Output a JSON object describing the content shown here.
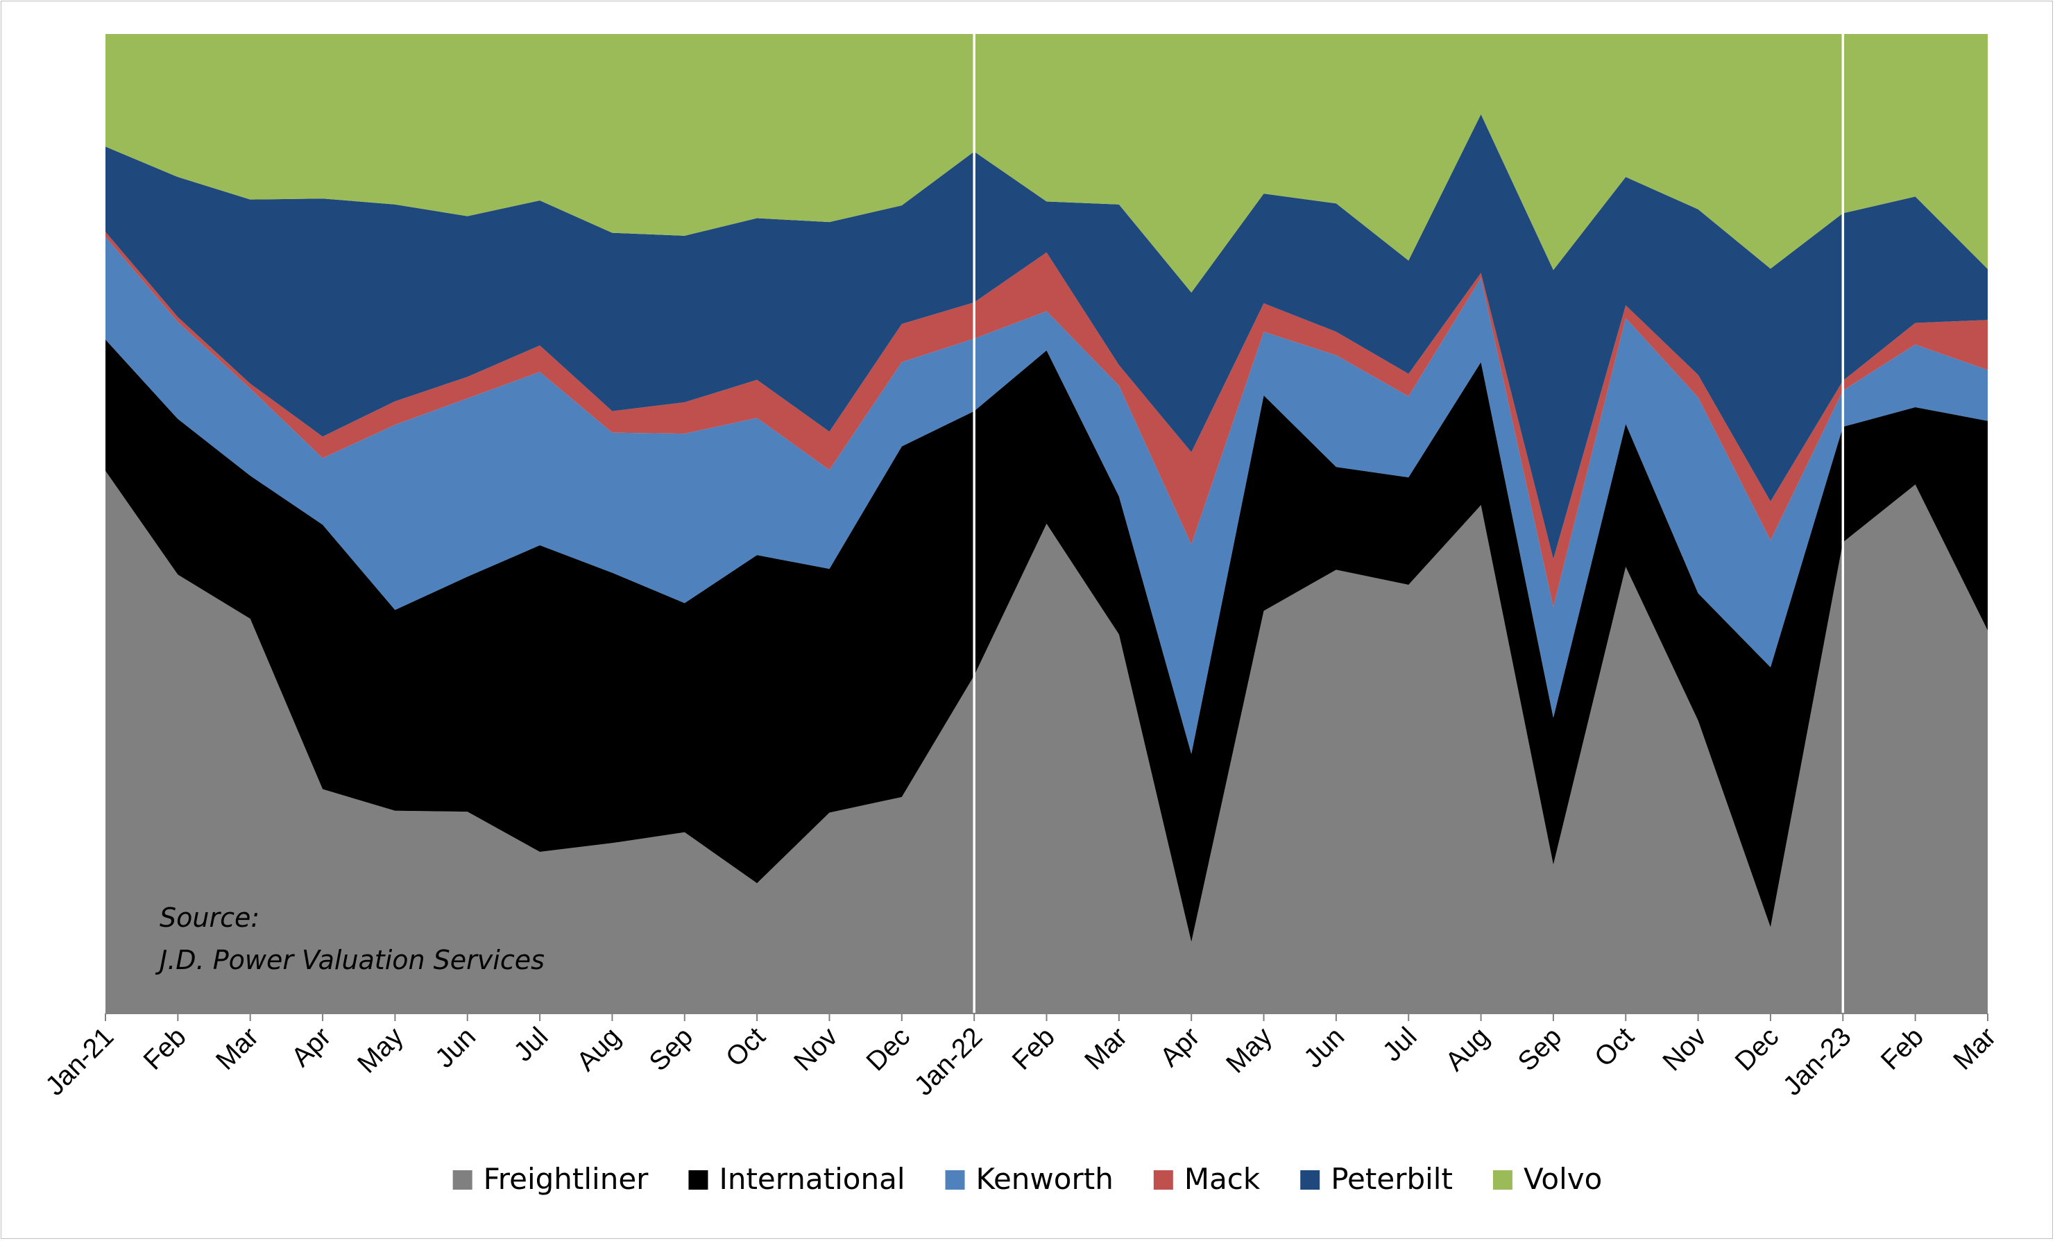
{
  "chart_data": {
    "type": "area",
    "stacked": true,
    "normalized_100_percent": true,
    "title": "",
    "xlabel": "",
    "ylabel": "",
    "ylim": [
      0,
      100
    ],
    "grid": false,
    "legend_position": "bottom",
    "categories": [
      "Jan-21",
      "Feb",
      "Mar",
      "Apr",
      "May",
      "Jun",
      "Jul",
      "Aug",
      "Sep",
      "Oct",
      "Nov",
      "Dec",
      "Jan-22",
      "Feb",
      "Mar",
      "Apr",
      "May",
      "Jun",
      "Jul",
      "Aug",
      "Sep",
      "Oct",
      "Nov",
      "Dec",
      "Jan-23",
      "Feb",
      "Mar"
    ],
    "year_separators_after_index": [
      12,
      24
    ],
    "series": [
      {
        "name": "Freightliner",
        "color": "#808080",
        "values": [
          55.4,
          44.8,
          40.3,
          22.9,
          20.7,
          20.6,
          16.5,
          17.4,
          18.5,
          13.3,
          20.5,
          22.1,
          34.5,
          50.0,
          38.7,
          7.3,
          41.1,
          45.3,
          43.9,
          51.9,
          15.2,
          45.6,
          29.9,
          8.9,
          48.1,
          54.0,
          39.1
        ]
      },
      {
        "name": "International",
        "color": "#000000",
        "values": [
          13.4,
          15.9,
          14.6,
          27.0,
          20.5,
          24.0,
          31.3,
          27.6,
          23.4,
          33.5,
          24.9,
          35.8,
          27.0,
          17.7,
          14.1,
          19.2,
          22.0,
          10.5,
          11.0,
          14.6,
          15.0,
          14.6,
          13.0,
          26.8,
          11.8,
          7.9,
          21.4
        ]
      },
      {
        "name": "Kenworth",
        "color": "#4f81bd",
        "values": [
          10.5,
          9.9,
          8.9,
          6.8,
          18.9,
          18.2,
          17.7,
          14.3,
          17.3,
          14.0,
          10.1,
          8.6,
          7.4,
          4.0,
          11.3,
          21.4,
          6.5,
          11.4,
          8.3,
          8.6,
          11.3,
          10.8,
          20.0,
          13.1,
          3.7,
          6.4,
          5.2
        ]
      },
      {
        "name": "Mack",
        "color": "#c0504d",
        "values": [
          0.5,
          0.5,
          0.5,
          2.2,
          2.4,
          2.2,
          2.7,
          2.2,
          3.2,
          3.9,
          3.9,
          3.9,
          3.7,
          6.0,
          2.1,
          9.4,
          2.9,
          2.4,
          2.3,
          0.5,
          4.9,
          1.3,
          2.3,
          4.0,
          1.0,
          2.2,
          5.1
        ]
      },
      {
        "name": "Peterbilt",
        "color": "#1f497d",
        "values": [
          8.7,
          14.3,
          18.8,
          24.3,
          20.1,
          16.4,
          14.8,
          18.2,
          17.0,
          16.5,
          21.4,
          12.1,
          15.4,
          5.2,
          16.4,
          16.3,
          11.2,
          13.1,
          11.6,
          16.2,
          29.5,
          13.1,
          16.9,
          24.0,
          17.1,
          12.9,
          5.2
        ]
      },
      {
        "name": "Volvo",
        "color": "#9bbb59",
        "values": [
          11.5,
          14.6,
          16.9,
          16.8,
          17.4,
          18.6,
          17.0,
          20.3,
          20.6,
          18.8,
          19.2,
          17.5,
          12.0,
          17.1,
          17.4,
          26.4,
          16.3,
          17.3,
          23.2,
          8.2,
          24.1,
          14.6,
          17.9,
          24.2,
          18.3,
          16.6,
          24.0
        ]
      }
    ]
  },
  "annotation": {
    "source_label": "Source:",
    "source_text": "J.D. Power Valuation Services"
  }
}
